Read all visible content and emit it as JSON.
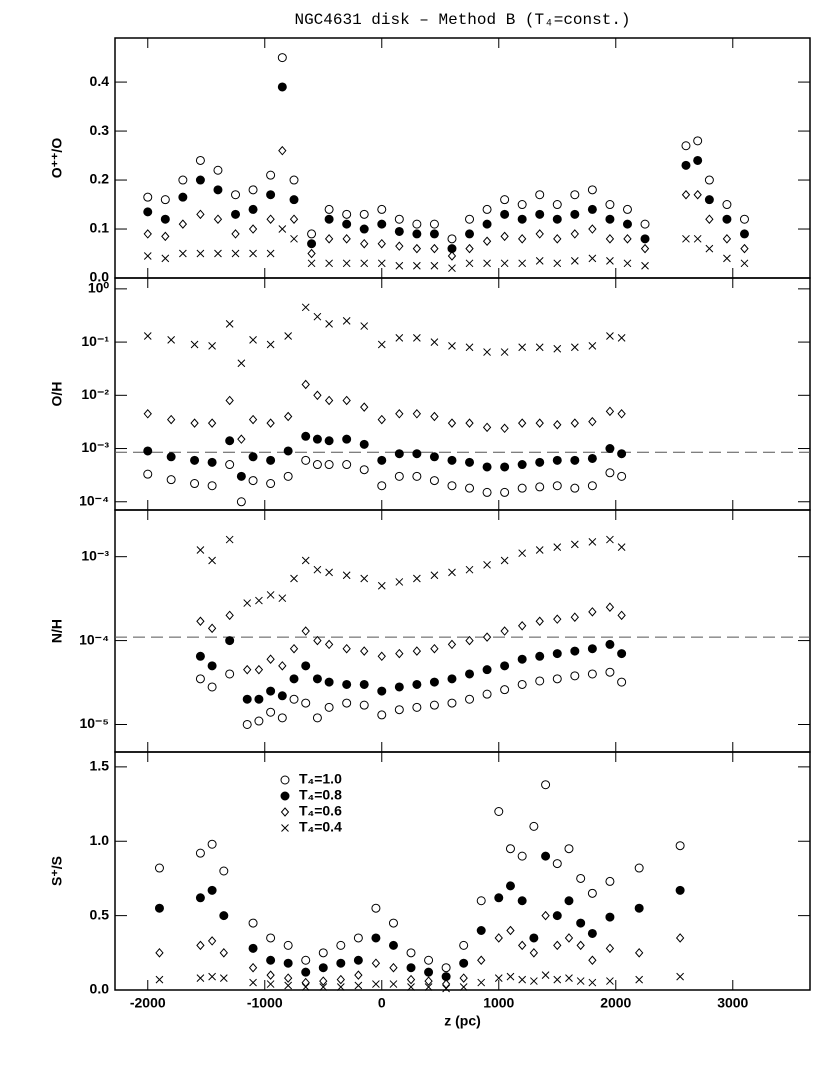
{
  "chart_data": [
    {
      "type": "scatter",
      "title": "NGC4631 disk – Method B (T₄=const.)",
      "ylabel": "O⁺⁺/O",
      "xlim": [
        -2280,
        3660
      ],
      "xticks": [
        -2000,
        -1000,
        0,
        1000,
        2000,
        3000
      ],
      "ylim": [
        0,
        0.49
      ],
      "yticks": [
        {
          "value": 0,
          "label": "0.0"
        },
        0.1,
        0.2,
        0.3,
        0.4
      ],
      "log": false,
      "x": [
        -2000,
        -1850,
        -1700,
        -1550,
        -1400,
        -1250,
        -1100,
        -950,
        -850,
        -750,
        -600,
        -450,
        -300,
        -150,
        0,
        150,
        300,
        450,
        600,
        750,
        900,
        1050,
        1200,
        1350,
        1500,
        1650,
        1800,
        1950,
        2100,
        2250,
        2600,
        2700,
        2800,
        2950,
        3100
      ],
      "series": [
        {
          "marker": "open-circle",
          "color": "#000000",
          "values": [
            0.165,
            0.16,
            0.2,
            0.24,
            0.22,
            0.17,
            0.18,
            0.21,
            0.45,
            0.2,
            0.09,
            0.14,
            0.13,
            0.13,
            0.14,
            0.12,
            0.11,
            0.11,
            0.08,
            0.12,
            0.14,
            0.16,
            0.15,
            0.17,
            0.15,
            0.17,
            0.18,
            0.15,
            0.14,
            0.11,
            0.27,
            0.28,
            0.2,
            0.15,
            0.12
          ]
        },
        {
          "marker": "filled-circle",
          "color": "#000000",
          "values": [
            0.135,
            0.12,
            0.165,
            0.2,
            0.18,
            0.13,
            0.14,
            0.17,
            0.39,
            0.16,
            0.07,
            0.12,
            0.11,
            0.1,
            0.11,
            0.095,
            0.09,
            0.09,
            0.06,
            0.09,
            0.11,
            0.13,
            0.12,
            0.13,
            0.12,
            0.13,
            0.14,
            0.12,
            0.11,
            0.08,
            0.23,
            0.24,
            0.16,
            0.12,
            0.09
          ]
        },
        {
          "marker": "open-diamond",
          "color": "#000000",
          "values": [
            0.09,
            0.085,
            0.11,
            0.13,
            0.12,
            0.09,
            0.1,
            0.12,
            0.26,
            0.12,
            0.05,
            0.08,
            0.08,
            0.07,
            0.07,
            0.065,
            0.06,
            0.06,
            0.045,
            0.06,
            0.075,
            0.085,
            0.08,
            0.09,
            0.08,
            0.09,
            0.1,
            0.08,
            0.08,
            0.06,
            0.17,
            0.17,
            0.12,
            0.08,
            0.06
          ]
        },
        {
          "marker": "cross",
          "color": "#000000",
          "values": [
            0.045,
            0.04,
            0.05,
            0.05,
            0.05,
            0.05,
            0.05,
            0.05,
            0.1,
            0.08,
            0.03,
            0.03,
            0.03,
            0.03,
            0.03,
            0.025,
            0.025,
            0.025,
            0.02,
            0.03,
            0.03,
            0.03,
            0.03,
            0.035,
            0.03,
            0.035,
            0.04,
            0.035,
            0.03,
            0.025,
            0.08,
            0.08,
            0.06,
            0.04,
            0.03
          ]
        }
      ]
    },
    {
      "type": "scatter",
      "ylabel": "O/H",
      "xlim": [
        -2280,
        3660
      ],
      "xticks": [
        -2000,
        -1000,
        0,
        1000,
        2000,
        3000
      ],
      "ylim": [
        7e-05,
        1.6
      ],
      "log": true,
      "hline": 0.00085,
      "yticks": [
        {
          "value": 0.0001,
          "label": "10⁻⁴"
        },
        {
          "value": 0.001,
          "label": "10⁻³"
        },
        {
          "value": 0.01,
          "label": "10⁻²"
        },
        {
          "value": 0.1,
          "label": "10⁻¹"
        },
        {
          "value": 1,
          "label": "10⁰"
        }
      ],
      "x": [
        -2000,
        -1800,
        -1600,
        -1450,
        -1300,
        -1200,
        -1100,
        -950,
        -800,
        -650,
        -550,
        -450,
        -300,
        -150,
        0,
        150,
        300,
        450,
        600,
        750,
        900,
        1050,
        1200,
        1350,
        1500,
        1650,
        1800,
        1950,
        2050
      ],
      "series": [
        {
          "marker": "open-circle",
          "color": "#000000",
          "values": [
            0.00033,
            0.00026,
            0.00022,
            0.0002,
            0.0005,
            0.0001,
            0.00025,
            0.00022,
            0.0003,
            0.0006,
            0.0005,
            0.0005,
            0.0005,
            0.0004,
            0.0002,
            0.0003,
            0.0003,
            0.00025,
            0.0002,
            0.00018,
            0.00015,
            0.00015,
            0.00018,
            0.00019,
            0.0002,
            0.00018,
            0.0002,
            0.00035,
            0.0003
          ]
        },
        {
          "marker": "filled-circle",
          "color": "#000000",
          "values": [
            0.0009,
            0.0007,
            0.0006,
            0.00055,
            0.0014,
            0.0003,
            0.0007,
            0.0006,
            0.0009,
            0.0017,
            0.0015,
            0.0014,
            0.0015,
            0.0012,
            0.0006,
            0.0008,
            0.0008,
            0.0007,
            0.0006,
            0.00055,
            0.00045,
            0.00045,
            0.0005,
            0.00055,
            0.0006,
            0.0006,
            0.00065,
            0.001,
            0.0008
          ]
        },
        {
          "marker": "open-diamond",
          "color": "#000000",
          "values": [
            0.0045,
            0.0035,
            0.003,
            0.003,
            0.008,
            0.0015,
            0.0035,
            0.003,
            0.004,
            0.016,
            0.01,
            0.008,
            0.008,
            0.006,
            0.0035,
            0.0045,
            0.0045,
            0.004,
            0.003,
            0.003,
            0.0025,
            0.0024,
            0.003,
            0.003,
            0.0028,
            0.003,
            0.0032,
            0.005,
            0.0045
          ]
        },
        {
          "marker": "cross",
          "color": "#000000",
          "values": [
            0.13,
            0.11,
            0.09,
            0.085,
            0.22,
            0.04,
            0.11,
            0.09,
            0.13,
            0.45,
            0.3,
            0.22,
            0.25,
            0.2,
            0.09,
            0.12,
            0.12,
            0.1,
            0.085,
            0.08,
            0.065,
            0.065,
            0.08,
            0.08,
            0.075,
            0.08,
            0.085,
            0.13,
            0.12
          ]
        }
      ]
    },
    {
      "type": "scatter",
      "ylabel": "N/H",
      "xlim": [
        -2280,
        3660
      ],
      "xticks": [
        -2000,
        -1000,
        0,
        1000,
        2000,
        3000
      ],
      "ylim": [
        4.7e-06,
        0.0036
      ],
      "log": true,
      "hline": 0.00011,
      "yticks": [
        {
          "value": 1e-05,
          "label": "10⁻⁵"
        },
        {
          "value": 0.0001,
          "label": "10⁻⁴"
        },
        {
          "value": 0.001,
          "label": "10⁻³"
        }
      ],
      "x": [
        -1550,
        -1450,
        -1300,
        -1150,
        -1050,
        -950,
        -850,
        -750,
        -650,
        -550,
        -450,
        -300,
        -150,
        0,
        150,
        300,
        450,
        600,
        750,
        900,
        1050,
        1200,
        1350,
        1500,
        1650,
        1800,
        1950,
        2050
      ],
      "series": [
        {
          "marker": "open-circle",
          "color": "#000000",
          "values": [
            3.5e-05,
            2.8e-05,
            4e-05,
            1e-05,
            1.1e-05,
            1.4e-05,
            1.2e-05,
            2e-05,
            1.8e-05,
            1.2e-05,
            1.6e-05,
            1.8e-05,
            1.7e-05,
            1.3e-05,
            1.5e-05,
            1.6e-05,
            1.7e-05,
            1.8e-05,
            2e-05,
            2.3e-05,
            2.6e-05,
            3e-05,
            3.3e-05,
            3.5e-05,
            3.8e-05,
            4e-05,
            4.2e-05,
            3.2e-05
          ]
        },
        {
          "marker": "filled-circle",
          "color": "#000000",
          "values": [
            6.5e-05,
            5e-05,
            0.0001,
            2e-05,
            2e-05,
            2.5e-05,
            2.2e-05,
            3.5e-05,
            5e-05,
            3.5e-05,
            3.2e-05,
            3e-05,
            3e-05,
            2.5e-05,
            2.8e-05,
            3e-05,
            3.2e-05,
            3.5e-05,
            4e-05,
            4.5e-05,
            5e-05,
            6e-05,
            6.5e-05,
            7e-05,
            7.5e-05,
            8e-05,
            9e-05,
            7e-05
          ]
        },
        {
          "marker": "open-diamond",
          "color": "#000000",
          "values": [
            0.00017,
            0.00014,
            0.0002,
            4.5e-05,
            4.5e-05,
            6e-05,
            5e-05,
            8e-05,
            0.00013,
            0.0001,
            9e-05,
            8e-05,
            7.5e-05,
            6.5e-05,
            7e-05,
            7.5e-05,
            8e-05,
            9e-05,
            0.0001,
            0.00011,
            0.00013,
            0.00015,
            0.00017,
            0.00018,
            0.00019,
            0.00022,
            0.00025,
            0.0002
          ]
        },
        {
          "marker": "cross",
          "color": "#000000",
          "values": [
            0.0012,
            0.0009,
            0.0016,
            0.00028,
            0.0003,
            0.00035,
            0.00032,
            0.00055,
            0.0009,
            0.0007,
            0.00065,
            0.0006,
            0.00055,
            0.00045,
            0.0005,
            0.00055,
            0.0006,
            0.00065,
            0.0007,
            0.0008,
            0.0009,
            0.0011,
            0.0012,
            0.0013,
            0.0014,
            0.0015,
            0.0016,
            0.0013
          ]
        }
      ]
    },
    {
      "type": "scatter",
      "ylabel": "S⁺/S",
      "xlabel": "z (pc)",
      "legend": "upper left",
      "xlim": [
        -2280,
        3660
      ],
      "xticks": [
        -2000,
        -1000,
        0,
        1000,
        2000,
        3000
      ],
      "ylim": [
        0,
        1.6
      ],
      "log": false,
      "yticks": [
        {
          "value": 0,
          "label": "0.0"
        },
        0.5,
        {
          "value": 1,
          "label": "1.0"
        },
        1.5
      ],
      "x": [
        -1900,
        -1550,
        -1450,
        -1350,
        -1100,
        -950,
        -800,
        -650,
        -500,
        -350,
        -200,
        -50,
        100,
        250,
        400,
        550,
        700,
        850,
        1000,
        1100,
        1200,
        1300,
        1400,
        1500,
        1600,
        1700,
        1800,
        1950,
        2200,
        2550
      ],
      "series": [
        {
          "name": "T₄=1.0",
          "marker": "open-circle",
          "color": "#000000",
          "values": [
            0.82,
            0.92,
            0.98,
            0.8,
            0.45,
            0.35,
            0.3,
            0.2,
            0.25,
            0.3,
            0.35,
            0.55,
            0.45,
            0.25,
            0.2,
            0.15,
            0.3,
            0.6,
            1.2,
            0.95,
            0.9,
            1.1,
            1.38,
            0.85,
            0.95,
            0.75,
            0.65,
            0.73,
            0.82,
            0.97
          ]
        },
        {
          "name": "T₄=0.8",
          "marker": "filled-circle",
          "color": "#000000",
          "values": [
            0.55,
            0.62,
            0.67,
            0.5,
            0.28,
            0.2,
            0.18,
            0.12,
            0.15,
            0.18,
            0.2,
            0.35,
            0.3,
            0.15,
            0.12,
            0.09,
            0.18,
            0.4,
            0.62,
            0.7,
            0.6,
            0.35,
            0.9,
            0.5,
            0.6,
            0.45,
            0.38,
            0.49,
            0.55,
            0.67
          ]
        },
        {
          "name": "T₄=0.6",
          "marker": "open-diamond",
          "color": "#000000",
          "values": [
            0.25,
            0.3,
            0.33,
            0.25,
            0.15,
            0.1,
            0.08,
            0.05,
            0.06,
            0.07,
            0.1,
            0.18,
            0.15,
            0.07,
            0.06,
            0.04,
            0.08,
            0.2,
            0.35,
            0.4,
            0.3,
            0.25,
            0.5,
            0.3,
            0.35,
            0.3,
            0.2,
            0.28,
            0.25,
            0.35
          ]
        },
        {
          "name": "T₄=0.4",
          "marker": "cross",
          "color": "#000000",
          "values": [
            0.07,
            0.08,
            0.09,
            0.08,
            0.05,
            0.04,
            0.03,
            0.02,
            0.02,
            0.02,
            0.03,
            0.04,
            0.04,
            0.02,
            0.02,
            0.01,
            0.02,
            0.05,
            0.08,
            0.09,
            0.07,
            0.06,
            0.1,
            0.07,
            0.08,
            0.06,
            0.05,
            0.06,
            0.07,
            0.09
          ]
        }
      ]
    }
  ]
}
